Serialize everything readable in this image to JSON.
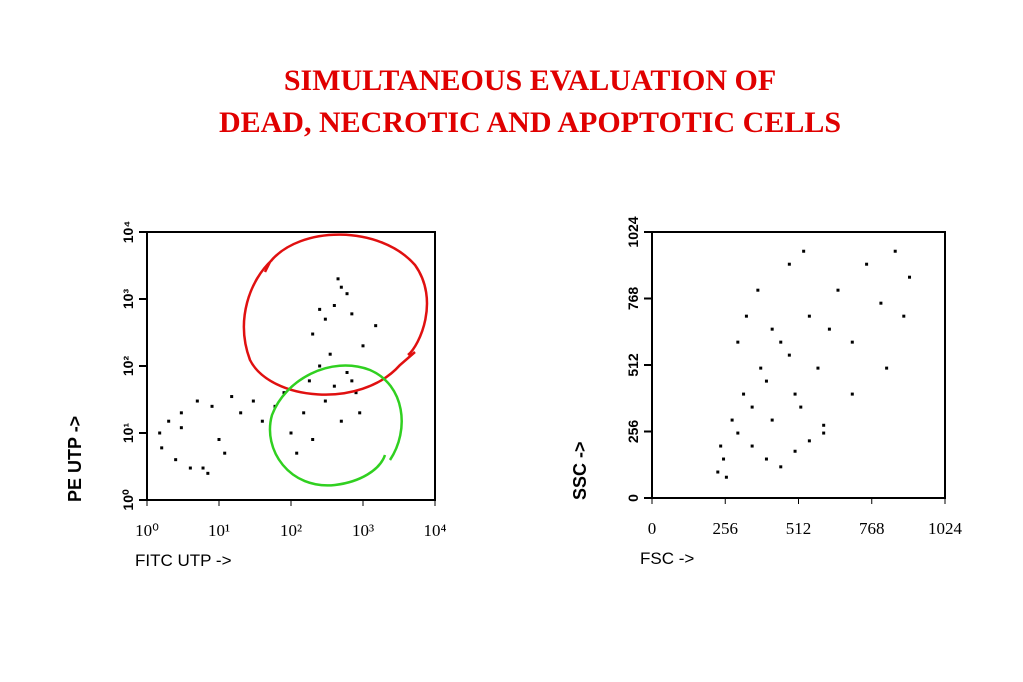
{
  "title": [
    "SIMULTANEOUS EVALUATION OF",
    "DEAD, NECROTIC AND APOPTOTIC CELLS"
  ],
  "chart_data": [
    {
      "type": "scatter",
      "x_label": "FITC UTP ->",
      "y_label": "PE UTP ->",
      "log_x": true,
      "log_y": true,
      "color": "#000000",
      "xlim": [
        1,
        10000
      ],
      "ylim": [
        1,
        10000
      ],
      "xticks": [
        {
          "value": 1,
          "label": "10⁰"
        },
        {
          "value": 10,
          "label": "10¹"
        },
        {
          "value": 100,
          "label": "10²"
        },
        {
          "value": 1000,
          "label": "10³"
        },
        {
          "value": 10000,
          "label": "10⁴"
        }
      ],
      "yticks": [
        {
          "value": 1,
          "label": "10⁰"
        },
        {
          "value": 10,
          "label": "10¹"
        },
        {
          "value": 100,
          "label": "10²"
        },
        {
          "value": 1000,
          "label": "10³"
        },
        {
          "value": 10000,
          "label": "10⁴"
        }
      ],
      "x": [
        1.5,
        2,
        3,
        5,
        8,
        10,
        1.6,
        2.5,
        4,
        6,
        12,
        20,
        30,
        15,
        7,
        3,
        40,
        60,
        80,
        100,
        150,
        200,
        300,
        400,
        500,
        700,
        900,
        120,
        250,
        350,
        600,
        800,
        200,
        300,
        400,
        500,
        600,
        700,
        1000,
        1500,
        450,
        250,
        180
      ],
      "y": [
        10,
        15,
        20,
        30,
        25,
        8,
        6,
        4,
        3,
        3,
        5,
        20,
        30,
        35,
        2.5,
        12,
        15,
        25,
        40,
        10,
        20,
        8,
        30,
        50,
        15,
        60,
        20,
        5,
        100,
        150,
        80,
        40,
        300,
        500,
        800,
        1500,
        1200,
        600,
        200,
        400,
        2000,
        700,
        60
      ]
    },
    {
      "type": "scatter",
      "x_label": "FSC ->",
      "y_label": "SSC ->",
      "log_x": false,
      "log_y": false,
      "color": "#000000",
      "xlim": [
        0,
        1024
      ],
      "ylim": [
        0,
        1024
      ],
      "xticks": [
        0,
        256,
        512,
        768,
        1024
      ],
      "yticks": [
        0,
        256,
        512,
        768,
        1024
      ],
      "x": [
        230,
        250,
        240,
        260,
        280,
        300,
        320,
        350,
        380,
        400,
        420,
        450,
        480,
        500,
        520,
        550,
        580,
        600,
        620,
        650,
        700,
        750,
        800,
        850,
        900,
        350,
        400,
        450,
        500,
        550,
        600,
        300,
        330,
        370,
        420,
        480,
        530,
        700,
        820,
        880
      ],
      "y": [
        100,
        150,
        200,
        80,
        300,
        250,
        400,
        350,
        500,
        450,
        300,
        600,
        550,
        400,
        350,
        700,
        500,
        250,
        650,
        800,
        600,
        900,
        750,
        950,
        850,
        200,
        150,
        120,
        180,
        220,
        280,
        600,
        700,
        800,
        650,
        900,
        950,
        400,
        500,
        700
      ]
    }
  ]
}
